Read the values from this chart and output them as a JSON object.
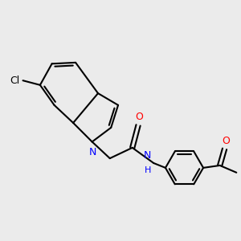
{
  "background_color": "#EBEBEB",
  "bond_color": "#000000",
  "bond_width": 1.5,
  "atom_colors": {
    "N": "#0000FF",
    "O": "#FF0000",
    "Cl": "#000000"
  },
  "fig_width": 3.0,
  "fig_height": 3.0,
  "dpi": 100
}
